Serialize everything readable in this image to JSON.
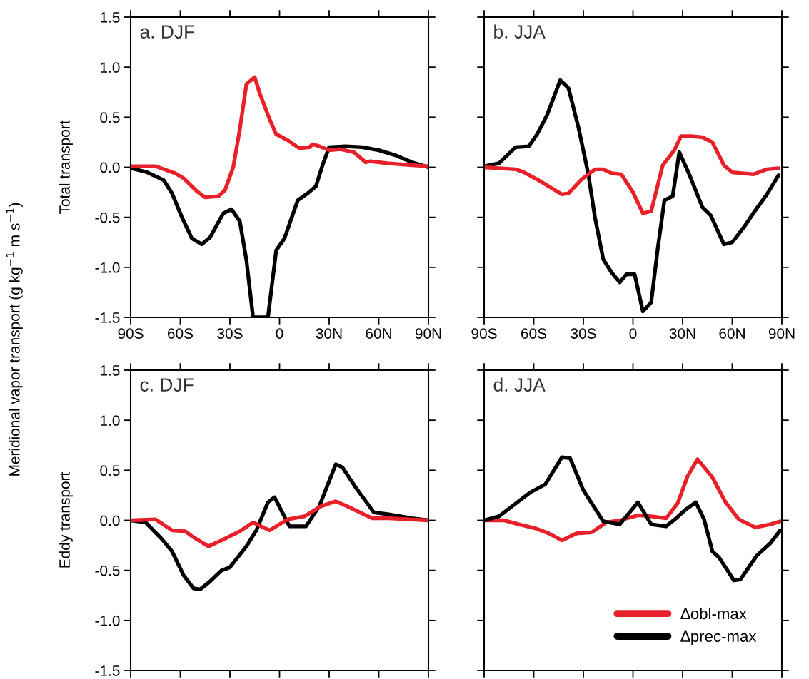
{
  "chart_data": [
    {
      "type": "line",
      "title": "a. DJF",
      "ylabel": "Total transport",
      "annotations": [
        "Meridional vapor transport (g kg$^{−1}$ m s$^{−1}$)"
      ],
      "xlim": [
        -90,
        90
      ],
      "xticks": [
        {
          "value": -90,
          "label": "90S"
        },
        {
          "value": -60,
          "label": "60S"
        },
        {
          "value": -30,
          "label": "30S"
        },
        0,
        {
          "value": 30,
          "label": "30N"
        },
        {
          "value": 60,
          "label": "60N"
        },
        {
          "value": 90,
          "label": "90N"
        }
      ],
      "ylim": [
        -1.5,
        1.5
      ],
      "yticks": [
        {
          "value": -1.5,
          "label": "-1.5"
        },
        {
          "value": -1.0,
          "label": "-1.0"
        },
        {
          "value": -0.5,
          "label": "-0.5"
        },
        {
          "value": 0,
          "label": "0.0"
        },
        {
          "value": 0.5,
          "label": "0.5"
        },
        {
          "value": 1.0,
          "label": "1.0"
        },
        {
          "value": 1.5,
          "label": "1.5"
        }
      ],
      "legend": false,
      "series": [
        {
          "color": "#000000",
          "x": [
            -90,
            -80,
            -70,
            -65,
            -59,
            -53,
            -47,
            -42,
            -34,
            -29,
            -24,
            -20,
            -16,
            -7,
            -2,
            3,
            11,
            17,
            22,
            26,
            30,
            40,
            50,
            60,
            70,
            80,
            90
          ],
          "values": [
            -0.01,
            -0.05,
            -0.13,
            -0.26,
            -0.5,
            -0.71,
            -0.77,
            -0.7,
            -0.46,
            -0.42,
            -0.54,
            -0.93,
            -1.5,
            -1.5,
            -0.83,
            -0.71,
            -0.33,
            -0.26,
            -0.19,
            0.02,
            0.2,
            0.21,
            0.2,
            0.17,
            0.12,
            0.05,
            0.0
          ]
        },
        {
          "color": "#e8202a",
          "x": [
            -90,
            -80,
            -75,
            -70,
            -63,
            -58,
            -50,
            -45,
            -37,
            -33,
            -28,
            -24,
            -20,
            -15,
            -12,
            -6,
            -2,
            5,
            12,
            18,
            20,
            24,
            30,
            37,
            45,
            52,
            55,
            65,
            80,
            90
          ],
          "values": [
            0.01,
            0.01,
            0.01,
            -0.02,
            -0.06,
            -0.11,
            -0.24,
            -0.3,
            -0.29,
            -0.23,
            0.0,
            0.38,
            0.83,
            0.9,
            0.74,
            0.48,
            0.33,
            0.27,
            0.19,
            0.2,
            0.23,
            0.21,
            0.17,
            0.18,
            0.15,
            0.05,
            0.06,
            0.04,
            0.02,
            0.01
          ]
        }
      ]
    },
    {
      "type": "line",
      "title": "b. JJA",
      "tick_labels": "x",
      "xlim": [
        -90,
        90
      ],
      "xticks": [
        {
          "value": -90,
          "label": "90S"
        },
        {
          "value": -60,
          "label": "60S"
        },
        {
          "value": -30,
          "label": "30S"
        },
        0,
        {
          "value": 30,
          "label": "30N"
        },
        {
          "value": 60,
          "label": "60N"
        },
        {
          "value": 90,
          "label": "90N"
        }
      ],
      "ylim": [
        -1.5,
        1.5
      ],
      "yticks": [
        {
          "value": -1.5,
          "label": null
        },
        {
          "value": -1.0,
          "label": null
        },
        {
          "value": -0.5,
          "label": null
        },
        {
          "value": 0,
          "label": null
        },
        {
          "value": 0.5,
          "label": null
        },
        {
          "value": 1.0,
          "label": null
        },
        {
          "value": 1.5,
          "label": null
        }
      ],
      "legend": false,
      "series": [
        {
          "color": "#000000",
          "x": [
            -90,
            -81,
            -71,
            -63,
            -58,
            -52,
            -44,
            -39,
            -33,
            -27,
            -23,
            -18,
            -13,
            -8,
            -4,
            1,
            6,
            11,
            15,
            19,
            24,
            28,
            34,
            42,
            47,
            55,
            60,
            67,
            74,
            81,
            88
          ],
          "values": [
            0.01,
            0.04,
            0.2,
            0.21,
            0.33,
            0.52,
            0.87,
            0.79,
            0.4,
            -0.07,
            -0.5,
            -0.92,
            -1.05,
            -1.15,
            -1.07,
            -1.07,
            -1.44,
            -1.35,
            -0.81,
            -0.33,
            -0.29,
            0.15,
            -0.07,
            -0.4,
            -0.48,
            -0.77,
            -0.75,
            -0.6,
            -0.43,
            -0.27,
            -0.08
          ]
        },
        {
          "color": "#e8202a",
          "x": [
            -90,
            -81,
            -71,
            -66,
            -56,
            -49,
            -43,
            -39,
            -31,
            -23,
            -18,
            -13,
            -7,
            0,
            6,
            11,
            18,
            25,
            29,
            35,
            42,
            48,
            55,
            60,
            73,
            81,
            88
          ],
          "values": [
            0.0,
            -0.01,
            -0.02,
            -0.05,
            -0.14,
            -0.21,
            -0.27,
            -0.26,
            -0.12,
            -0.02,
            -0.02,
            -0.06,
            -0.07,
            -0.25,
            -0.46,
            -0.44,
            0.02,
            0.17,
            0.31,
            0.31,
            0.3,
            0.25,
            0.02,
            -0.05,
            -0.07,
            -0.02,
            -0.01
          ]
        }
      ]
    },
    {
      "type": "line",
      "title": "c. DJF",
      "ylabel": "Eddy transport",
      "tick_labels": "y",
      "xlim": [
        -90,
        90
      ],
      "xticks": [
        {
          "value": -90,
          "label": null
        },
        {
          "value": -60,
          "label": null
        },
        {
          "value": -30,
          "label": null
        },
        {
          "value": 0,
          "label": null
        },
        {
          "value": 30,
          "label": null
        },
        {
          "value": 60,
          "label": null
        },
        {
          "value": 90,
          "label": null
        }
      ],
      "ylim": [
        -1.5,
        1.5
      ],
      "yticks": [
        {
          "value": -1.5,
          "label": "-1.5"
        },
        {
          "value": -1.0,
          "label": "-1.0"
        },
        {
          "value": -0.5,
          "label": "-0.5"
        },
        {
          "value": 0,
          "label": "0.0"
        },
        {
          "value": 0.5,
          "label": "0.5"
        },
        {
          "value": 1.0,
          "label": "1.0"
        },
        {
          "value": 1.5,
          "label": "1.5"
        }
      ],
      "legend": false,
      "series": [
        {
          "color": "#000000",
          "x": [
            -90,
            -81,
            -71,
            -65,
            -58,
            -52,
            -48,
            -42,
            -35,
            -30,
            -20,
            -14,
            -7,
            -3,
            6,
            16,
            24,
            34,
            38,
            46,
            57,
            66,
            80,
            90
          ],
          "values": [
            0.0,
            -0.02,
            -0.19,
            -0.31,
            -0.55,
            -0.68,
            -0.69,
            -0.61,
            -0.5,
            -0.47,
            -0.26,
            -0.1,
            0.18,
            0.23,
            -0.06,
            -0.06,
            0.14,
            0.56,
            0.53,
            0.33,
            0.08,
            0.06,
            0.02,
            0.0
          ]
        },
        {
          "color": "#e8202a",
          "x": [
            -90,
            -75,
            -65,
            -57,
            -52,
            -43,
            -35,
            -24,
            -16,
            -6,
            5,
            15,
            25,
            34,
            41,
            56,
            66,
            90
          ],
          "values": [
            0.0,
            0.01,
            -0.1,
            -0.11,
            -0.17,
            -0.26,
            -0.2,
            -0.11,
            -0.02,
            -0.1,
            0.01,
            0.04,
            0.14,
            0.19,
            0.14,
            0.02,
            0.02,
            0.0
          ]
        }
      ]
    },
    {
      "type": "line",
      "title": "d. JJA",
      "tick_labels": false,
      "xlim": [
        -90,
        90
      ],
      "xticks": [
        {
          "value": -90,
          "label": null
        },
        {
          "value": -60,
          "label": null
        },
        {
          "value": -30,
          "label": null
        },
        {
          "value": 0,
          "label": null
        },
        {
          "value": 30,
          "label": null
        },
        {
          "value": 60,
          "label": null
        },
        {
          "value": 90,
          "label": null
        }
      ],
      "ylim": [
        -1.5,
        1.5
      ],
      "yticks": [
        {
          "value": -1.5,
          "label": null
        },
        {
          "value": -1.0,
          "label": null
        },
        {
          "value": -0.5,
          "label": null
        },
        {
          "value": 0,
          "label": null
        },
        {
          "value": 0.5,
          "label": null
        },
        {
          "value": 1.0,
          "label": null
        },
        {
          "value": 1.5,
          "label": null
        }
      ],
      "legend": "bottom right",
      "series": [
        {
          "name": "∆obl-max",
          "color": "#e8202a",
          "x": [
            -90,
            -78,
            -69,
            -59,
            -51,
            -43,
            -34,
            -25,
            -16,
            -8,
            3,
            11,
            20,
            27,
            33,
            39,
            48,
            56,
            64,
            74,
            83,
            89
          ],
          "values": [
            0.0,
            0.0,
            -0.04,
            -0.08,
            -0.13,
            -0.2,
            -0.13,
            -0.12,
            -0.02,
            0.0,
            0.05,
            0.04,
            0.02,
            0.17,
            0.44,
            0.61,
            0.43,
            0.18,
            0.01,
            -0.07,
            -0.04,
            -0.01
          ]
        },
        {
          "name": "∆prec-max",
          "color": "#000000",
          "x": [
            -90,
            -81,
            -70,
            -62,
            -53,
            -43,
            -38,
            -30,
            -18,
            -8,
            3,
            11,
            20,
            26,
            32,
            38,
            43,
            48,
            52,
            61,
            65,
            75,
            83,
            89
          ],
          "values": [
            0.0,
            0.04,
            0.18,
            0.28,
            0.36,
            0.63,
            0.62,
            0.3,
            -0.01,
            -0.04,
            0.18,
            -0.04,
            -0.06,
            0.02,
            0.11,
            0.18,
            0.01,
            -0.31,
            -0.37,
            -0.6,
            -0.59,
            -0.35,
            -0.23,
            -0.1
          ]
        }
      ]
    }
  ]
}
